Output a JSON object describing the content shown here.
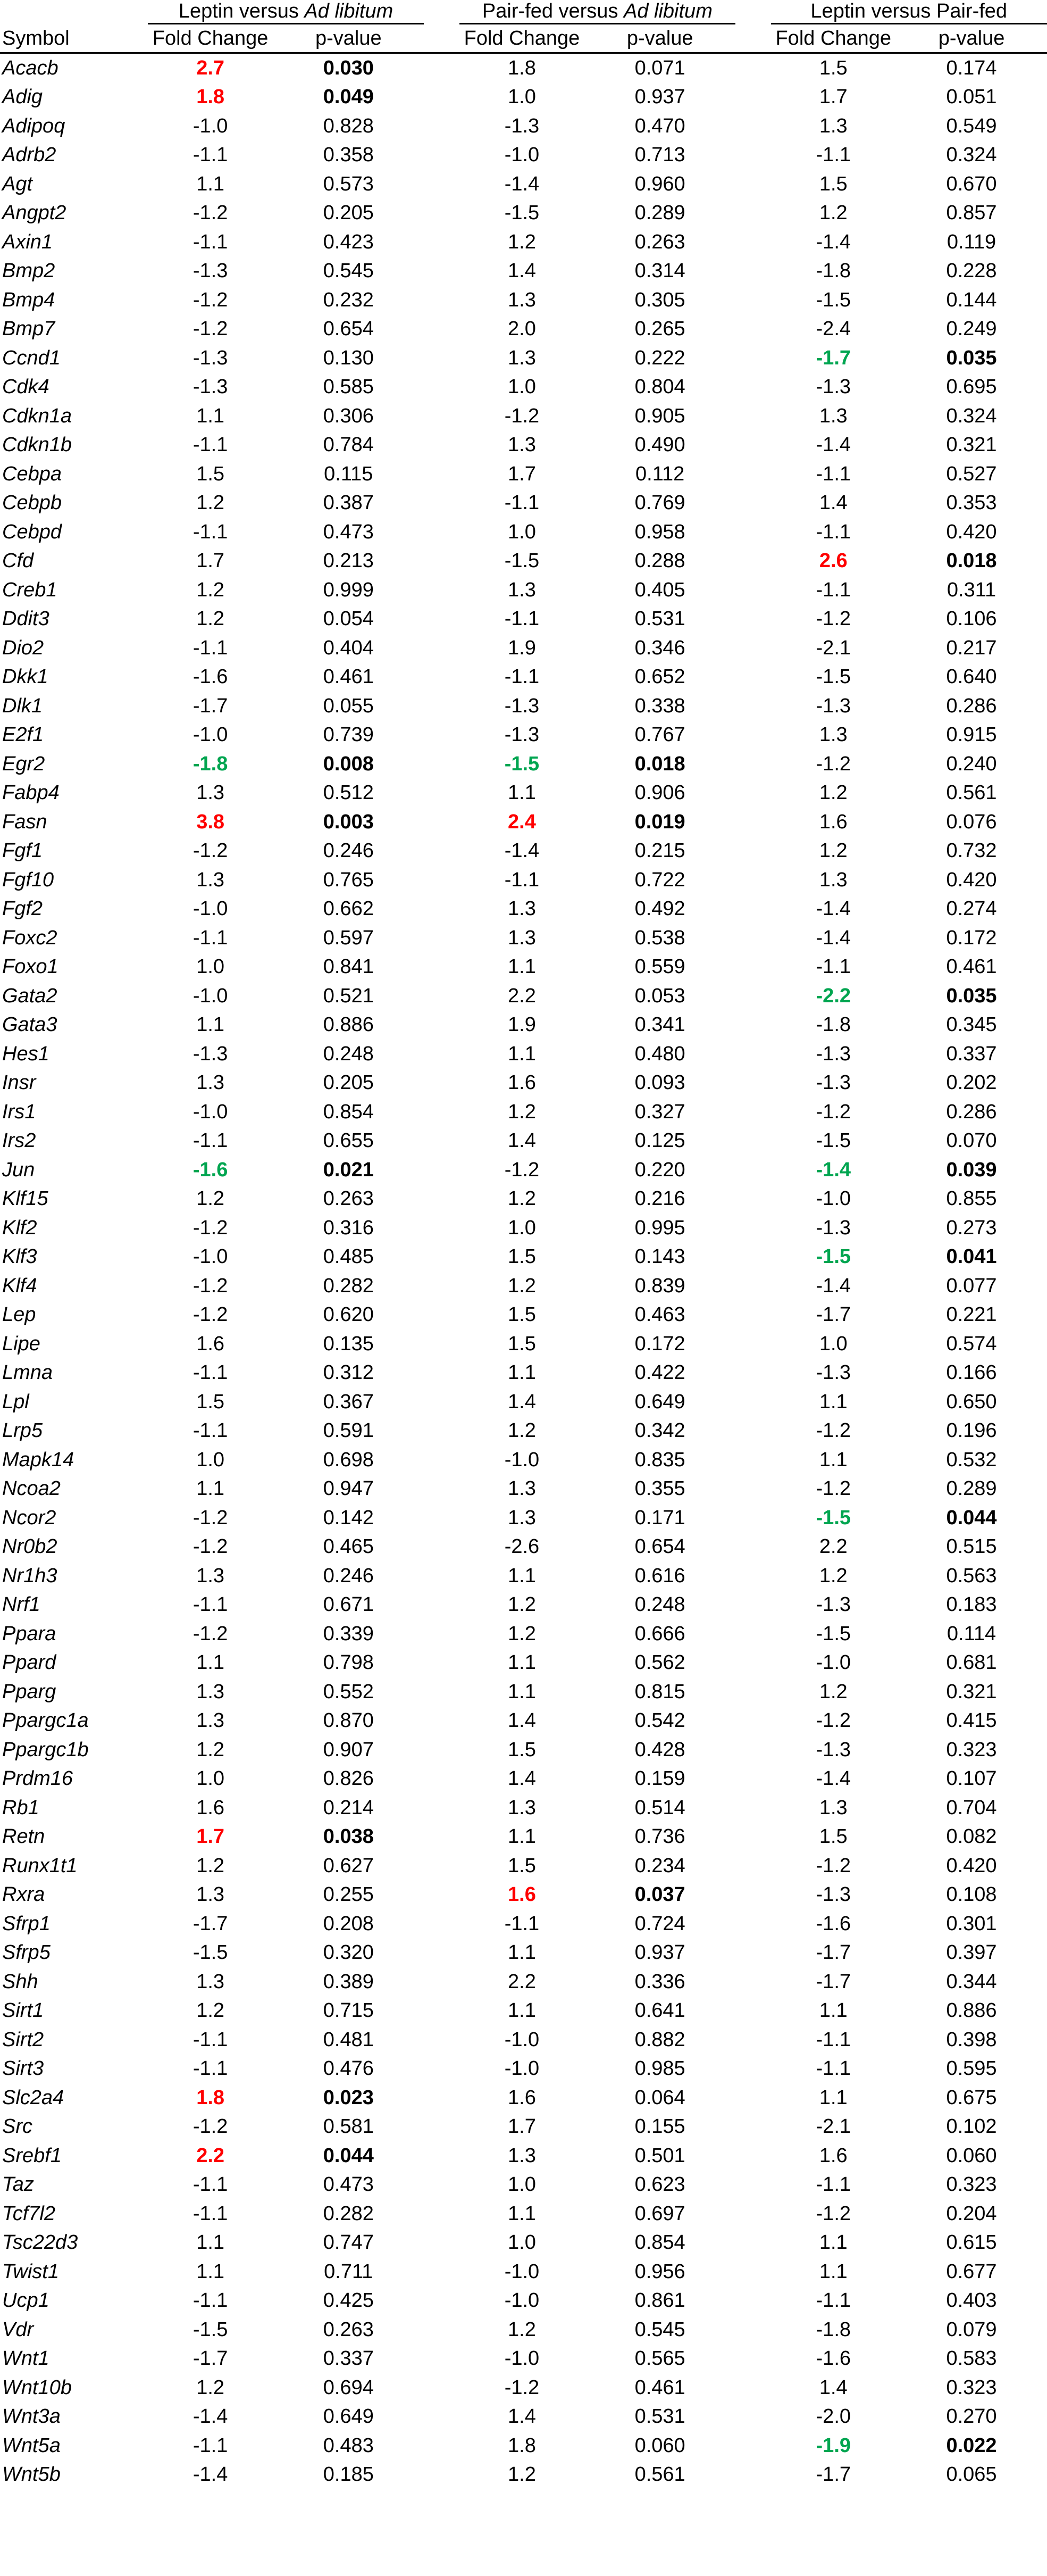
{
  "header": {
    "groups": [
      {
        "label": "Leptin versus ",
        "label_italic": "Ad libitum"
      },
      {
        "label": "Pair-fed versus ",
        "label_italic": "Ad libitum"
      },
      {
        "label": "Leptin versus Pair-fed",
        "label_italic": ""
      }
    ],
    "symbol": "Symbol",
    "fold_change": "Fold Change",
    "p_value": "p-value"
  },
  "colors": {
    "up": "#ff0000",
    "down": "#00a550"
  },
  "rows": [
    [
      "Acacb",
      "2.7",
      "0.030",
      "1.8",
      "0.071",
      "1.5",
      "0.174"
    ],
    [
      "Adig",
      "1.8",
      "0.049",
      "1.0",
      "0.937",
      "1.7",
      "0.051"
    ],
    [
      "Adipoq",
      "-1.0",
      "0.828",
      "-1.3",
      "0.470",
      "1.3",
      "0.549"
    ],
    [
      "Adrb2",
      "-1.1",
      "0.358",
      "-1.0",
      "0.713",
      "-1.1",
      "0.324"
    ],
    [
      "Agt",
      "1.1",
      "0.573",
      "-1.4",
      "0.960",
      "1.5",
      "0.670"
    ],
    [
      "Angpt2",
      "-1.2",
      "0.205",
      "-1.5",
      "0.289",
      "1.2",
      "0.857"
    ],
    [
      "Axin1",
      "-1.1",
      "0.423",
      "1.2",
      "0.263",
      "-1.4",
      "0.119"
    ],
    [
      "Bmp2",
      "-1.3",
      "0.545",
      "1.4",
      "0.314",
      "-1.8",
      "0.228"
    ],
    [
      "Bmp4",
      "-1.2",
      "0.232",
      "1.3",
      "0.305",
      "-1.5",
      "0.144"
    ],
    [
      "Bmp7",
      "-1.2",
      "0.654",
      "2.0",
      "0.265",
      "-2.4",
      "0.249"
    ],
    [
      "Ccnd1",
      "-1.3",
      "0.130",
      "1.3",
      "0.222",
      "-1.7",
      "0.035"
    ],
    [
      "Cdk4",
      "-1.3",
      "0.585",
      "1.0",
      "0.804",
      "-1.3",
      "0.695"
    ],
    [
      "Cdkn1a",
      "1.1",
      "0.306",
      "-1.2",
      "0.905",
      "1.3",
      "0.324"
    ],
    [
      "Cdkn1b",
      "-1.1",
      "0.784",
      "1.3",
      "0.490",
      "-1.4",
      "0.321"
    ],
    [
      "Cebpa",
      "1.5",
      "0.115",
      "1.7",
      "0.112",
      "-1.1",
      "0.527"
    ],
    [
      "Cebpb",
      "1.2",
      "0.387",
      "-1.1",
      "0.769",
      "1.4",
      "0.353"
    ],
    [
      "Cebpd",
      "-1.1",
      "0.473",
      "1.0",
      "0.958",
      "-1.1",
      "0.420"
    ],
    [
      "Cfd",
      "1.7",
      "0.213",
      "-1.5",
      "0.288",
      "2.6",
      "0.018"
    ],
    [
      "Creb1",
      "1.2",
      "0.999",
      "1.3",
      "0.405",
      "-1.1",
      "0.311"
    ],
    [
      "Ddit3",
      "1.2",
      "0.054",
      "-1.1",
      "0.531",
      "-1.2",
      "0.106"
    ],
    [
      "Dio2",
      "-1.1",
      "0.404",
      "1.9",
      "0.346",
      "-2.1",
      "0.217"
    ],
    [
      "Dkk1",
      "-1.6",
      "0.461",
      "-1.1",
      "0.652",
      "-1.5",
      "0.640"
    ],
    [
      "Dlk1",
      "-1.7",
      "0.055",
      "-1.3",
      "0.338",
      "-1.3",
      "0.286"
    ],
    [
      "E2f1",
      "-1.0",
      "0.739",
      "-1.3",
      "0.767",
      "1.3",
      "0.915"
    ],
    [
      "Egr2",
      "-1.8",
      "0.008",
      "-1.5",
      "0.018",
      "-1.2",
      "0.240"
    ],
    [
      "Fabp4",
      "1.3",
      "0.512",
      "1.1",
      "0.906",
      "1.2",
      "0.561"
    ],
    [
      "Fasn",
      "3.8",
      "0.003",
      "2.4",
      "0.019",
      "1.6",
      "0.076"
    ],
    [
      "Fgf1",
      "-1.2",
      "0.246",
      "-1.4",
      "0.215",
      "1.2",
      "0.732"
    ],
    [
      "Fgf10",
      "1.3",
      "0.765",
      "-1.1",
      "0.722",
      "1.3",
      "0.420"
    ],
    [
      "Fgf2",
      "-1.0",
      "0.662",
      "1.3",
      "0.492",
      "-1.4",
      "0.274"
    ],
    [
      "Foxc2",
      "-1.1",
      "0.597",
      "1.3",
      "0.538",
      "-1.4",
      "0.172"
    ],
    [
      "Foxo1",
      "1.0",
      "0.841",
      "1.1",
      "0.559",
      "-1.1",
      "0.461"
    ],
    [
      "Gata2",
      "-1.0",
      "0.521",
      "2.2",
      "0.053",
      "-2.2",
      "0.035"
    ],
    [
      "Gata3",
      "1.1",
      "0.886",
      "1.9",
      "0.341",
      "-1.8",
      "0.345"
    ],
    [
      "Hes1",
      "-1.3",
      "0.248",
      "1.1",
      "0.480",
      "-1.3",
      "0.337"
    ],
    [
      "Insr",
      "1.3",
      "0.205",
      "1.6",
      "0.093",
      "-1.3",
      "0.202"
    ],
    [
      "Irs1",
      "-1.0",
      "0.854",
      "1.2",
      "0.327",
      "-1.2",
      "0.286"
    ],
    [
      "Irs2",
      "-1.1",
      "0.655",
      "1.4",
      "0.125",
      "-1.5",
      "0.070"
    ],
    [
      "Jun",
      "-1.6",
      "0.021",
      "-1.2",
      "0.220",
      "-1.4",
      "0.039"
    ],
    [
      "Klf15",
      "1.2",
      "0.263",
      "1.2",
      "0.216",
      "-1.0",
      "0.855"
    ],
    [
      "Klf2",
      "-1.2",
      "0.316",
      "1.0",
      "0.995",
      "-1.3",
      "0.273"
    ],
    [
      "Klf3",
      "-1.0",
      "0.485",
      "1.5",
      "0.143",
      "-1.5",
      "0.041"
    ],
    [
      "Klf4",
      "-1.2",
      "0.282",
      "1.2",
      "0.839",
      "-1.4",
      "0.077"
    ],
    [
      "Lep",
      "-1.2",
      "0.620",
      "1.5",
      "0.463",
      "-1.7",
      "0.221"
    ],
    [
      "Lipe",
      "1.6",
      "0.135",
      "1.5",
      "0.172",
      "1.0",
      "0.574"
    ],
    [
      "Lmna",
      "-1.1",
      "0.312",
      "1.1",
      "0.422",
      "-1.3",
      "0.166"
    ],
    [
      "Lpl",
      "1.5",
      "0.367",
      "1.4",
      "0.649",
      "1.1",
      "0.650"
    ],
    [
      "Lrp5",
      "-1.1",
      "0.591",
      "1.2",
      "0.342",
      "-1.2",
      "0.196"
    ],
    [
      "Mapk14",
      "1.0",
      "0.698",
      "-1.0",
      "0.835",
      "1.1",
      "0.532"
    ],
    [
      "Ncoa2",
      "1.1",
      "0.947",
      "1.3",
      "0.355",
      "-1.2",
      "0.289"
    ],
    [
      "Ncor2",
      "-1.2",
      "0.142",
      "1.3",
      "0.171",
      "-1.5",
      "0.044"
    ],
    [
      "Nr0b2",
      "-1.2",
      "0.465",
      "-2.6",
      "0.654",
      "2.2",
      "0.515"
    ],
    [
      "Nr1h3",
      "1.3",
      "0.246",
      "1.1",
      "0.616",
      "1.2",
      "0.563"
    ],
    [
      "Nrf1",
      "-1.1",
      "0.671",
      "1.2",
      "0.248",
      "-1.3",
      "0.183"
    ],
    [
      "Ppara",
      "-1.2",
      "0.339",
      "1.2",
      "0.666",
      "-1.5",
      "0.114"
    ],
    [
      "Ppard",
      "1.1",
      "0.798",
      "1.1",
      "0.562",
      "-1.0",
      "0.681"
    ],
    [
      "Pparg",
      "1.3",
      "0.552",
      "1.1",
      "0.815",
      "1.2",
      "0.321"
    ],
    [
      "Ppargc1a",
      "1.3",
      "0.870",
      "1.4",
      "0.542",
      "-1.2",
      "0.415"
    ],
    [
      "Ppargc1b",
      "1.2",
      "0.907",
      "1.5",
      "0.428",
      "-1.3",
      "0.323"
    ],
    [
      "Prdm16",
      "1.0",
      "0.826",
      "1.4",
      "0.159",
      "-1.4",
      "0.107"
    ],
    [
      "Rb1",
      "1.6",
      "0.214",
      "1.3",
      "0.514",
      "1.3",
      "0.704"
    ],
    [
      "Retn",
      "1.7",
      "0.038",
      "1.1",
      "0.736",
      "1.5",
      "0.082"
    ],
    [
      "Runx1t1",
      "1.2",
      "0.627",
      "1.5",
      "0.234",
      "-1.2",
      "0.420"
    ],
    [
      "Rxra",
      "1.3",
      "0.255",
      "1.6",
      "0.037",
      "-1.3",
      "0.108"
    ],
    [
      "Sfrp1",
      "-1.7",
      "0.208",
      "-1.1",
      "0.724",
      "-1.6",
      "0.301"
    ],
    [
      "Sfrp5",
      "-1.5",
      "0.320",
      "1.1",
      "0.937",
      "-1.7",
      "0.397"
    ],
    [
      "Shh",
      "1.3",
      "0.389",
      "2.2",
      "0.336",
      "-1.7",
      "0.344"
    ],
    [
      "Sirt1",
      "1.2",
      "0.715",
      "1.1",
      "0.641",
      "1.1",
      "0.886"
    ],
    [
      "Sirt2",
      "-1.1",
      "0.481",
      "-1.0",
      "0.882",
      "-1.1",
      "0.398"
    ],
    [
      "Sirt3",
      "-1.1",
      "0.476",
      "-1.0",
      "0.985",
      "-1.1",
      "0.595"
    ],
    [
      "Slc2a4",
      "1.8",
      "0.023",
      "1.6",
      "0.064",
      "1.1",
      "0.675"
    ],
    [
      "Src",
      "-1.2",
      "0.581",
      "1.7",
      "0.155",
      "-2.1",
      "0.102"
    ],
    [
      "Srebf1",
      "2.2",
      "0.044",
      "1.3",
      "0.501",
      "1.6",
      "0.060"
    ],
    [
      "Taz",
      "-1.1",
      "0.473",
      "1.0",
      "0.623",
      "-1.1",
      "0.323"
    ],
    [
      "Tcf7l2",
      "-1.1",
      "0.282",
      "1.1",
      "0.697",
      "-1.2",
      "0.204"
    ],
    [
      "Tsc22d3",
      "1.1",
      "0.747",
      "1.0",
      "0.854",
      "1.1",
      "0.615"
    ],
    [
      "Twist1",
      "1.1",
      "0.711",
      "-1.0",
      "0.956",
      "1.1",
      "0.677"
    ],
    [
      "Ucp1",
      "-1.1",
      "0.425",
      "-1.0",
      "0.861",
      "-1.1",
      "0.403"
    ],
    [
      "Vdr",
      "-1.5",
      "0.263",
      "1.2",
      "0.545",
      "-1.8",
      "0.079"
    ],
    [
      "Wnt1",
      "-1.7",
      "0.337",
      "-1.0",
      "0.565",
      "-1.6",
      "0.583"
    ],
    [
      "Wnt10b",
      "1.2",
      "0.694",
      "-1.2",
      "0.461",
      "1.4",
      "0.323"
    ],
    [
      "Wnt3a",
      "-1.4",
      "0.649",
      "1.4",
      "0.531",
      "-2.0",
      "0.270"
    ],
    [
      "Wnt5a",
      "-1.1",
      "0.483",
      "1.8",
      "0.060",
      "-1.9",
      "0.022"
    ],
    [
      "Wnt5b",
      "-1.4",
      "0.185",
      "1.2",
      "0.561",
      "-1.7",
      "0.065"
    ]
  ]
}
